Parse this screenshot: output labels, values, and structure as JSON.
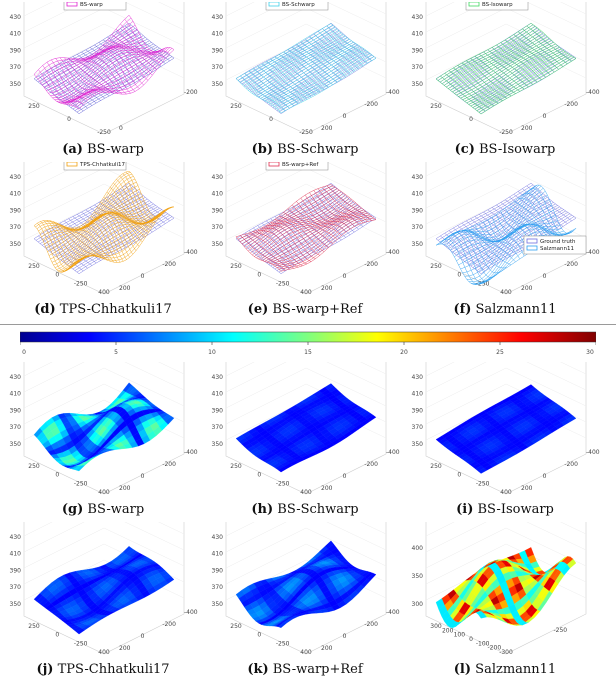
{
  "top_row": [
    {
      "tag": "(a)",
      "caption": "BS-warp",
      "legend": [
        "Ground truth",
        "BS-warp"
      ],
      "colors": {
        "gt": "#5b5bd6",
        "method": "#e020d0"
      },
      "z_ticks": [
        "450",
        "430",
        "410",
        "390",
        "370",
        "350"
      ],
      "x_ticks": [
        "250",
        "0",
        "-250"
      ],
      "y_ticks": [
        "0",
        "-200"
      ]
    },
    {
      "tag": "(b)",
      "caption": "BS-Schwarp",
      "legend": [
        "Ground truth",
        "BS-Schwarp"
      ],
      "colors": {
        "gt": "#6f7fe0",
        "method": "#40d0e8"
      },
      "z_ticks": [
        "450",
        "430",
        "410",
        "390",
        "370",
        "350"
      ],
      "x_ticks": [
        "250",
        "0",
        "-250"
      ],
      "y_ticks": [
        "200",
        "0",
        "-200",
        "-400"
      ]
    },
    {
      "tag": "(c)",
      "caption": "BS-Isowarp",
      "legend": [
        "Ground truth",
        "BS-Isowarp"
      ],
      "colors": {
        "gt": "#6f7fe0",
        "method": "#40d860"
      },
      "z_ticks": [
        "450",
        "430",
        "410",
        "390",
        "370",
        "350"
      ],
      "x_ticks": [
        "250",
        "0",
        "-250"
      ],
      "y_ticks": [
        "200",
        "0",
        "-200",
        "-400"
      ]
    },
    {
      "tag": "(d)",
      "caption": "TPS-Chhatkuli17",
      "legend": [
        "Ground truth",
        "TPS-Chhatkuli17"
      ],
      "colors": {
        "gt": "#6f6fe0",
        "method": "#f0a010"
      },
      "z_ticks": [
        "450",
        "430",
        "410",
        "390",
        "370",
        "350"
      ],
      "x_ticks": [
        "250",
        "0",
        "-250",
        "400"
      ],
      "y_ticks": [
        "200",
        "0",
        "-200",
        "-400"
      ]
    },
    {
      "tag": "(e)",
      "caption": "BS-warp+Ref",
      "legend": [
        "Ground truth",
        "BS-warp+Ref"
      ],
      "colors": {
        "gt": "#6f6fe0",
        "method": "#e03050"
      },
      "z_ticks": [
        "450",
        "430",
        "410",
        "390",
        "370",
        "350"
      ],
      "x_ticks": [
        "250",
        "0",
        "-250",
        "400"
      ],
      "y_ticks": [
        "200",
        "0",
        "-200",
        "-400"
      ]
    },
    {
      "tag": "(f)",
      "caption": "Salzmann11",
      "legend": [
        "Ground truth",
        "Salzmann11"
      ],
      "colors": {
        "gt": "#6f6fe0",
        "method": "#30a0f0"
      },
      "z_ticks": [
        "450",
        "430",
        "410",
        "390",
        "370",
        "350"
      ],
      "x_ticks": [
        "250",
        "0",
        "-250",
        "400"
      ],
      "y_ticks": [
        "200",
        "0",
        "-200",
        "-400"
      ]
    }
  ],
  "colorbar": {
    "ticks": [
      "0",
      "5",
      "10",
      "15",
      "20",
      "25",
      "30"
    ],
    "min": 0,
    "max": 30
  },
  "bottom_row": [
    {
      "tag": "(g)",
      "caption": "BS-warp",
      "z_ticks": [
        "450",
        "430",
        "410",
        "390",
        "370",
        "350"
      ],
      "x_ticks": [
        "250",
        "0",
        "-250",
        "400"
      ],
      "y_ticks": [
        "200",
        "0",
        "-200",
        "-400"
      ]
    },
    {
      "tag": "(h)",
      "caption": "BS-Schwarp",
      "z_ticks": [
        "450",
        "430",
        "410",
        "390",
        "370",
        "350"
      ],
      "x_ticks": [
        "250",
        "0",
        "-250",
        "400"
      ],
      "y_ticks": [
        "200",
        "0",
        "-200",
        "-400"
      ]
    },
    {
      "tag": "(i)",
      "caption": "BS-Isowarp",
      "z_ticks": [
        "450",
        "430",
        "410",
        "390",
        "370",
        "350"
      ],
      "x_ticks": [
        "250",
        "0",
        "-250",
        "400"
      ],
      "y_ticks": [
        "200",
        "0",
        "-200",
        "-400"
      ]
    },
    {
      "tag": "(j)",
      "caption": "TPS-Chhatkuli17",
      "z_ticks": [
        "450",
        "430",
        "410",
        "390",
        "370",
        "350"
      ],
      "x_ticks": [
        "250",
        "0",
        "-250",
        "400"
      ],
      "y_ticks": [
        "200",
        "0",
        "-200",
        "-400"
      ]
    },
    {
      "tag": "(k)",
      "caption": "BS-warp+Ref",
      "z_ticks": [
        "450",
        "430",
        "410",
        "390",
        "370",
        "350"
      ],
      "x_ticks": [
        "250",
        "0",
        "-250",
        "400"
      ],
      "y_ticks": [
        "200",
        "0",
        "-200",
        "-400"
      ]
    },
    {
      "tag": "(l)",
      "caption": "Salzmann11",
      "z_ticks": [
        "450",
        "400",
        "350",
        "300"
      ],
      "x_ticks": [
        "300",
        "200",
        "100",
        "0",
        "-100",
        "-200",
        "-300"
      ],
      "y_ticks": [
        "-250"
      ]
    }
  ]
}
